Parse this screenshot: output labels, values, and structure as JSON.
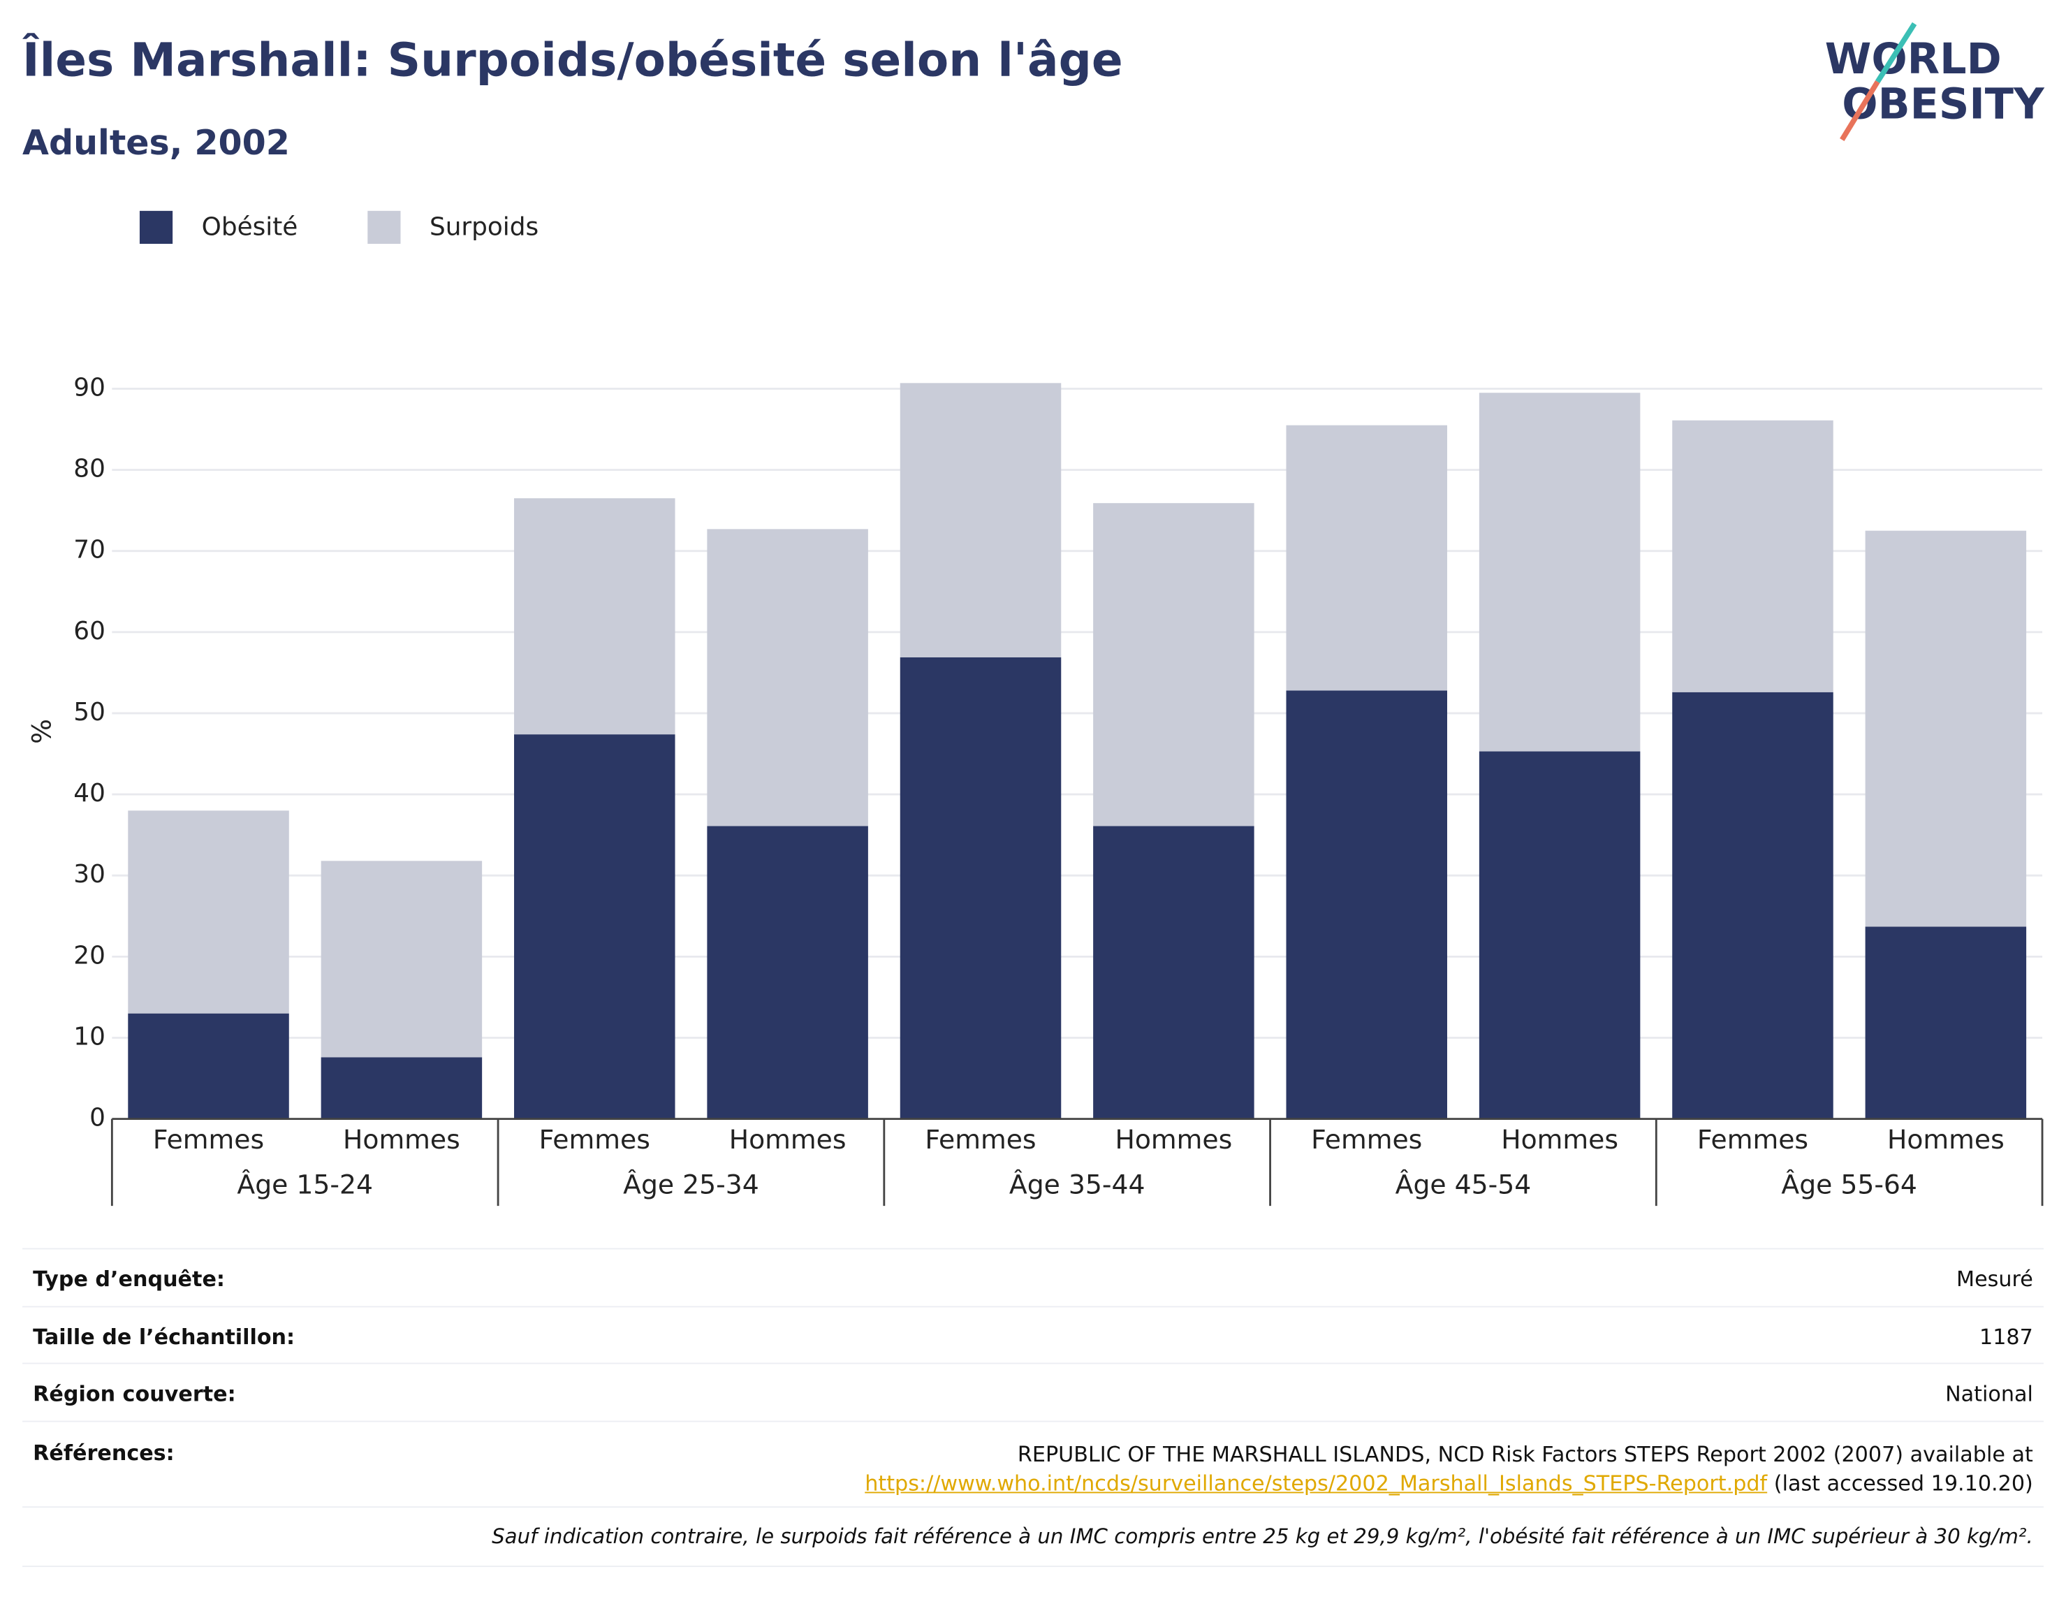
{
  "chart_data": {
    "type": "bar",
    "stacked": true,
    "title": "Îles Marshall: Surpoids/obésité selon l'âge",
    "subtitle": "Adultes, 2002",
    "y_label": "%",
    "groups": [
      "Âge 15-24",
      "Âge 25-34",
      "Âge 35-44",
      "Âge 45-54",
      "Âge 55-64"
    ],
    "categories": [
      "Femmes",
      "Hommes",
      "Femmes",
      "Hommes",
      "Femmes",
      "Hommes",
      "Femmes",
      "Hommes",
      "Femmes",
      "Hommes"
    ],
    "series": [
      {
        "name": "Obésité",
        "color": "#2b3764",
        "values": [
          13,
          7.6,
          47.4,
          36.1,
          56.9,
          36.1,
          52.8,
          45.3,
          52.6,
          23.7
        ]
      },
      {
        "name": "Surpoids",
        "color": "#c9ccd8",
        "values": [
          25,
          24.2,
          29.1,
          36.6,
          33.8,
          39.8,
          32.7,
          44.2,
          33.5,
          48.8
        ]
      }
    ],
    "ylim": [
      0,
      92
    ],
    "yticks": [
      0,
      10,
      20,
      30,
      40,
      50,
      60,
      70,
      80,
      90
    ],
    "grid": true,
    "legend": "top-left"
  },
  "logo": {
    "line1": "WORLD",
    "line2": "OBESITY"
  },
  "table": {
    "rows": [
      [
        "Type d’enquête:",
        "Mesuré"
      ],
      [
        "Taille de l’échantillon:",
        "1187"
      ],
      [
        "Région couverte:",
        "National"
      ]
    ],
    "references": {
      "label": "Références:",
      "text": "REPUBLIC OF THE MARSHALL ISLANDS, NCD Risk Factors STEPS Report 2002 (2007) available at",
      "link": "https://www.who.int/ncds/surveillance/steps/2002_Marshall_Islands_STEPS-Report.pdf",
      "after": "(last accessed 19.10.20)"
    },
    "footnote": "Sauf indication contraire, le surpoids fait référence à un IMC compris entre 25 kg et 29,9 kg/m², l'obésité fait référence à un IMC supérieur à 30 kg/m²."
  }
}
